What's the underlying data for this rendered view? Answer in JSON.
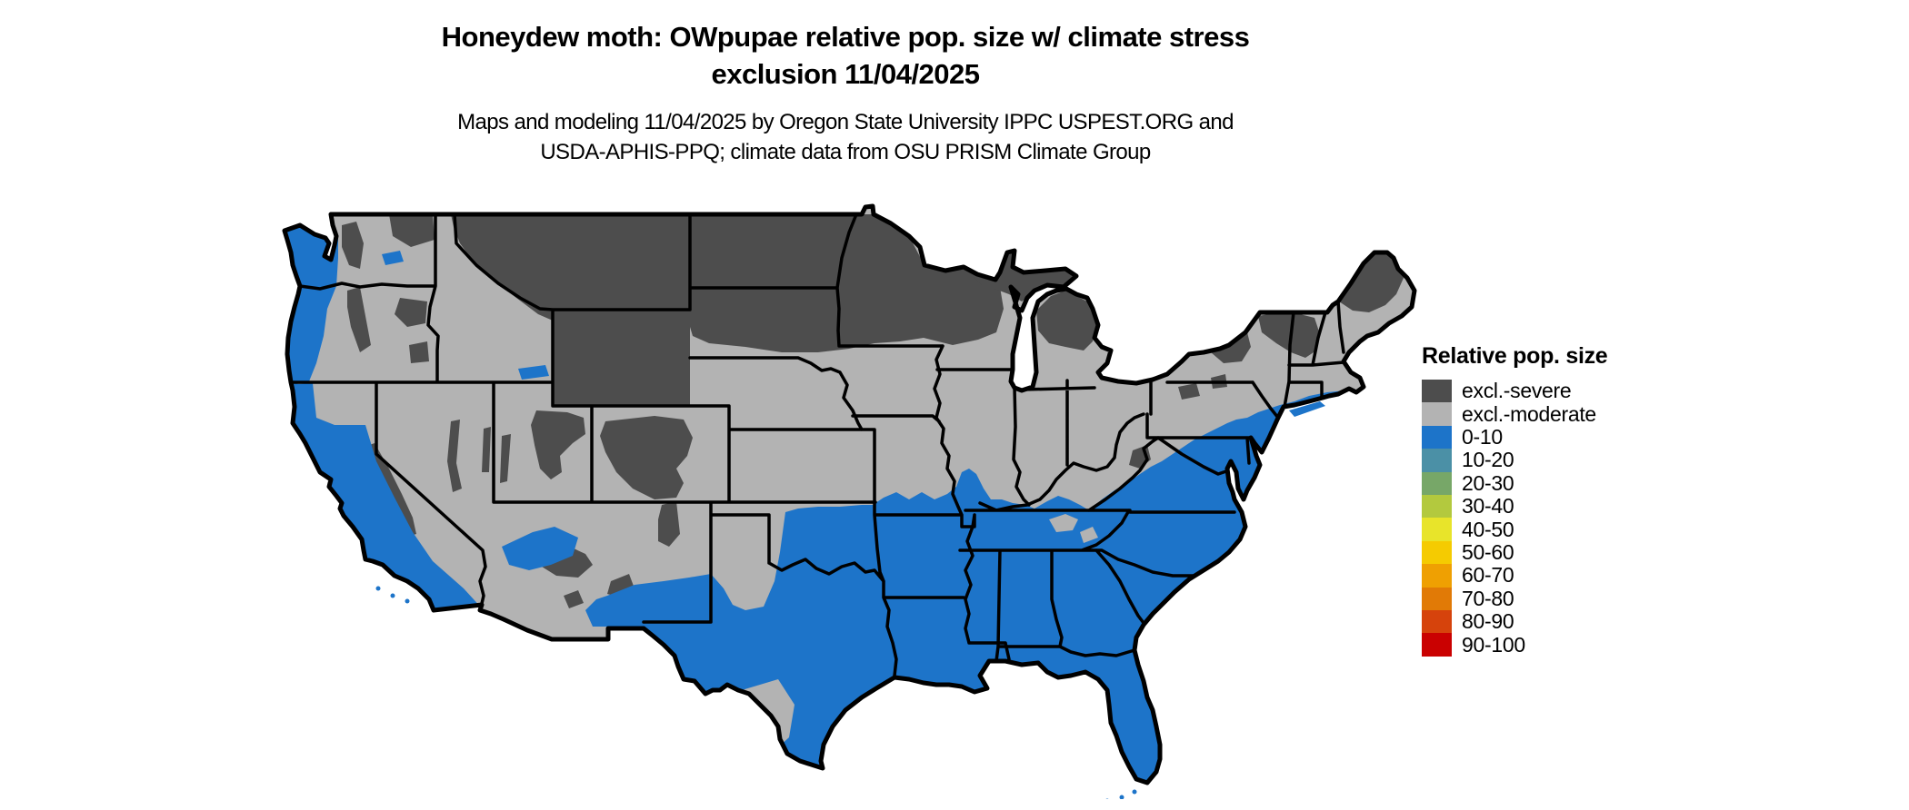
{
  "title": {
    "line1": "Honeydew moth: OWpupae relative pop. size w/ climate stress",
    "line2": "exclusion 11/04/2025"
  },
  "subtitle": {
    "line1": "Maps and modeling 11/04/2025 by Oregon State University IPPC USPEST.ORG and",
    "line2": "USDA-APHIS-PPQ; climate data from OSU PRISM Climate Group"
  },
  "legend": {
    "title": "Relative pop. size",
    "items": [
      {
        "label": "excl.-severe",
        "color": "#4d4d4d"
      },
      {
        "label": "excl.-moderate",
        "color": "#b3b3b3"
      },
      {
        "label": "0-10",
        "color": "#1d74c9"
      },
      {
        "label": "10-20",
        "color": "#4b90a6"
      },
      {
        "label": "20-30",
        "color": "#77a768"
      },
      {
        "label": "30-40",
        "color": "#b3c93e"
      },
      {
        "label": "40-50",
        "color": "#e8e42a"
      },
      {
        "label": "50-60",
        "color": "#f5cb01"
      },
      {
        "label": "60-70",
        "color": "#efa002"
      },
      {
        "label": "70-80",
        "color": "#e17a06"
      },
      {
        "label": "80-90",
        "color": "#d6430c"
      },
      {
        "label": "90-100",
        "color": "#ca0101"
      }
    ]
  },
  "colors": {
    "severe": "#4d4d4d",
    "moderate": "#b3b3b3",
    "population_0_10": "#1d74c9",
    "border": "#000000",
    "background": "#ffffff"
  },
  "map": {
    "region": "Contiguous United States"
  }
}
